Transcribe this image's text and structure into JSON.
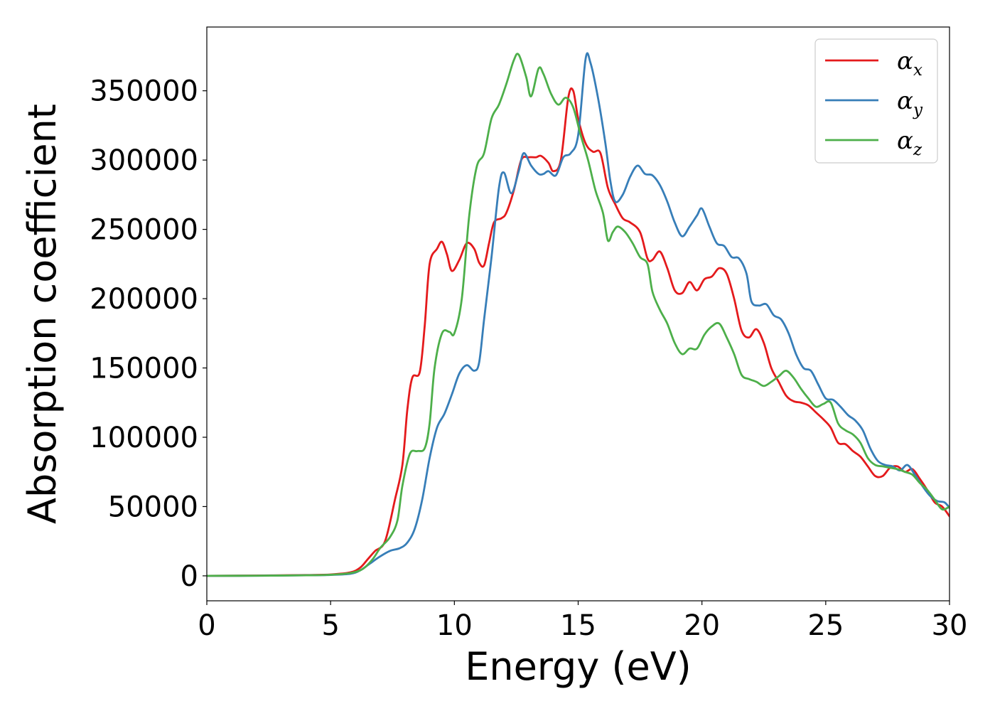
{
  "chart_data": {
    "type": "line",
    "title": "",
    "xlabel": "Energy (eV)",
    "ylabel": "Absorption coefficient",
    "xlim": [
      0,
      30
    ],
    "ylim": [
      -18000,
      396000
    ],
    "xticks": [
      0,
      5,
      10,
      15,
      20,
      25,
      30
    ],
    "xtick_labels": [
      "0",
      "5",
      "10",
      "15",
      "20",
      "25",
      "30"
    ],
    "yticks": [
      0,
      50000,
      100000,
      150000,
      200000,
      250000,
      300000,
      350000
    ],
    "ytick_labels": [
      "0",
      "50000",
      "100000",
      "150000",
      "200000",
      "250000",
      "300000",
      "350000"
    ],
    "grid": false,
    "legend_position": "top-right",
    "series": [
      {
        "name": "αx",
        "symbol": "α",
        "subscript": "x",
        "color": "#e41a1c",
        "points": [
          [
            0,
            0
          ],
          [
            2,
            200
          ],
          [
            4,
            600
          ],
          [
            5,
            1000
          ],
          [
            5.8,
            2500
          ],
          [
            6.2,
            6000
          ],
          [
            6.5,
            12000
          ],
          [
            6.8,
            18000
          ],
          [
            7.2,
            25000
          ],
          [
            7.6,
            55000
          ],
          [
            7.9,
            80000
          ],
          [
            8.1,
            120000
          ],
          [
            8.3,
            143000
          ],
          [
            8.6,
            147000
          ],
          [
            8.8,
            180000
          ],
          [
            9.0,
            225000
          ],
          [
            9.3,
            236000
          ],
          [
            9.5,
            241000
          ],
          [
            9.7,
            232000
          ],
          [
            9.9,
            220000
          ],
          [
            10.2,
            228000
          ],
          [
            10.5,
            240000
          ],
          [
            10.8,
            236000
          ],
          [
            11.0,
            226000
          ],
          [
            11.2,
            224000
          ],
          [
            11.4,
            240000
          ],
          [
            11.6,
            255000
          ],
          [
            11.9,
            258000
          ],
          [
            12.1,
            262000
          ],
          [
            12.4,
            278000
          ],
          [
            12.7,
            300000
          ],
          [
            13.0,
            302000
          ],
          [
            13.3,
            302000
          ],
          [
            13.5,
            303000
          ],
          [
            13.8,
            298000
          ],
          [
            14.0,
            292000
          ],
          [
            14.3,
            300000
          ],
          [
            14.6,
            345000
          ],
          [
            14.8,
            350000
          ],
          [
            15.0,
            330000
          ],
          [
            15.3,
            312000
          ],
          [
            15.6,
            306000
          ],
          [
            15.9,
            305000
          ],
          [
            16.2,
            280000
          ],
          [
            16.5,
            268000
          ],
          [
            16.8,
            258000
          ],
          [
            17.1,
            255000
          ],
          [
            17.5,
            248000
          ],
          [
            17.8,
            229000
          ],
          [
            18.0,
            228000
          ],
          [
            18.3,
            234000
          ],
          [
            18.6,
            222000
          ],
          [
            18.9,
            206000
          ],
          [
            19.2,
            204000
          ],
          [
            19.5,
            212000
          ],
          [
            19.8,
            206000
          ],
          [
            20.1,
            214000
          ],
          [
            20.4,
            216000
          ],
          [
            20.7,
            222000
          ],
          [
            21.0,
            218000
          ],
          [
            21.3,
            200000
          ],
          [
            21.6,
            177000
          ],
          [
            21.9,
            172000
          ],
          [
            22.2,
            178000
          ],
          [
            22.5,
            168000
          ],
          [
            22.8,
            150000
          ],
          [
            23.1,
            140000
          ],
          [
            23.4,
            130000
          ],
          [
            23.7,
            126000
          ],
          [
            24.0,
            125000
          ],
          [
            24.3,
            123000
          ],
          [
            24.6,
            118000
          ],
          [
            24.9,
            113000
          ],
          [
            25.2,
            107000
          ],
          [
            25.5,
            96000
          ],
          [
            25.8,
            95000
          ],
          [
            26.1,
            90000
          ],
          [
            26.4,
            86000
          ],
          [
            26.7,
            79000
          ],
          [
            27.0,
            72000
          ],
          [
            27.3,
            72000
          ],
          [
            27.6,
            78000
          ],
          [
            27.9,
            79000
          ],
          [
            28.2,
            75000
          ],
          [
            28.5,
            77000
          ],
          [
            28.8,
            70000
          ],
          [
            29.1,
            62000
          ],
          [
            29.4,
            53000
          ],
          [
            29.7,
            50000
          ],
          [
            30.0,
            43000
          ]
        ]
      },
      {
        "name": "αy",
        "symbol": "α",
        "subscript": "y",
        "color": "#377eb8",
        "points": [
          [
            0,
            0
          ],
          [
            2,
            100
          ],
          [
            4,
            400
          ],
          [
            5,
            700
          ],
          [
            5.8,
            1500
          ],
          [
            6.2,
            4000
          ],
          [
            6.6,
            9000
          ],
          [
            7.0,
            14000
          ],
          [
            7.4,
            18000
          ],
          [
            7.8,
            20000
          ],
          [
            8.1,
            24000
          ],
          [
            8.4,
            34000
          ],
          [
            8.7,
            55000
          ],
          [
            9.0,
            85000
          ],
          [
            9.3,
            107000
          ],
          [
            9.6,
            117000
          ],
          [
            9.9,
            131000
          ],
          [
            10.2,
            146000
          ],
          [
            10.5,
            152000
          ],
          [
            10.8,
            148000
          ],
          [
            11.0,
            154000
          ],
          [
            11.2,
            185000
          ],
          [
            11.5,
            230000
          ],
          [
            11.8,
            280000
          ],
          [
            12.0,
            291000
          ],
          [
            12.3,
            276000
          ],
          [
            12.6,
            292000
          ],
          [
            12.8,
            305000
          ],
          [
            13.1,
            296000
          ],
          [
            13.4,
            290000
          ],
          [
            13.6,
            290000
          ],
          [
            13.8,
            292000
          ],
          [
            14.1,
            289000
          ],
          [
            14.4,
            302000
          ],
          [
            14.7,
            305000
          ],
          [
            15.0,
            318000
          ],
          [
            15.3,
            373000
          ],
          [
            15.5,
            370000
          ],
          [
            15.8,
            345000
          ],
          [
            16.1,
            312000
          ],
          [
            16.3,
            285000
          ],
          [
            16.5,
            270000
          ],
          [
            16.8,
            275000
          ],
          [
            17.1,
            288000
          ],
          [
            17.4,
            296000
          ],
          [
            17.7,
            290000
          ],
          [
            18.0,
            289000
          ],
          [
            18.3,
            282000
          ],
          [
            18.6,
            270000
          ],
          [
            18.9,
            255000
          ],
          [
            19.2,
            245000
          ],
          [
            19.5,
            252000
          ],
          [
            19.8,
            260000
          ],
          [
            20.0,
            265000
          ],
          [
            20.3,
            252000
          ],
          [
            20.6,
            240000
          ],
          [
            20.9,
            238000
          ],
          [
            21.2,
            230000
          ],
          [
            21.5,
            229000
          ],
          [
            21.8,
            218000
          ],
          [
            22.0,
            198000
          ],
          [
            22.3,
            195000
          ],
          [
            22.6,
            196000
          ],
          [
            22.9,
            188000
          ],
          [
            23.2,
            185000
          ],
          [
            23.5,
            175000
          ],
          [
            23.8,
            160000
          ],
          [
            24.1,
            150000
          ],
          [
            24.4,
            148000
          ],
          [
            24.7,
            138000
          ],
          [
            25.0,
            128000
          ],
          [
            25.3,
            127000
          ],
          [
            25.6,
            122000
          ],
          [
            25.9,
            116000
          ],
          [
            26.2,
            112000
          ],
          [
            26.5,
            105000
          ],
          [
            26.8,
            92000
          ],
          [
            27.1,
            83000
          ],
          [
            27.4,
            80000
          ],
          [
            27.7,
            79000
          ],
          [
            28.0,
            76000
          ],
          [
            28.3,
            80000
          ],
          [
            28.6,
            73000
          ],
          [
            28.9,
            65000
          ],
          [
            29.2,
            58000
          ],
          [
            29.5,
            54000
          ],
          [
            29.8,
            53000
          ],
          [
            30.0,
            49000
          ]
        ]
      },
      {
        "name": "αz",
        "symbol": "α",
        "subscript": "z",
        "color": "#4daf4a",
        "points": [
          [
            0,
            0
          ],
          [
            2,
            100
          ],
          [
            4,
            400
          ],
          [
            5,
            800
          ],
          [
            5.8,
            2000
          ],
          [
            6.3,
            5000
          ],
          [
            6.7,
            12000
          ],
          [
            7.0,
            20000
          ],
          [
            7.4,
            28000
          ],
          [
            7.7,
            40000
          ],
          [
            7.9,
            65000
          ],
          [
            8.2,
            88000
          ],
          [
            8.5,
            90000
          ],
          [
            8.8,
            92000
          ],
          [
            9.0,
            110000
          ],
          [
            9.2,
            150000
          ],
          [
            9.5,
            175000
          ],
          [
            9.8,
            176000
          ],
          [
            10.0,
            175000
          ],
          [
            10.3,
            200000
          ],
          [
            10.6,
            260000
          ],
          [
            10.9,
            295000
          ],
          [
            11.2,
            305000
          ],
          [
            11.5,
            330000
          ],
          [
            11.8,
            340000
          ],
          [
            12.1,
            355000
          ],
          [
            12.4,
            372000
          ],
          [
            12.6,
            376000
          ],
          [
            12.9,
            360000
          ],
          [
            13.1,
            346000
          ],
          [
            13.4,
            366000
          ],
          [
            13.6,
            362000
          ],
          [
            13.9,
            348000
          ],
          [
            14.2,
            340000
          ],
          [
            14.5,
            345000
          ],
          [
            14.8,
            338000
          ],
          [
            15.1,
            318000
          ],
          [
            15.4,
            300000
          ],
          [
            15.7,
            278000
          ],
          [
            16.0,
            262000
          ],
          [
            16.2,
            242000
          ],
          [
            16.4,
            248000
          ],
          [
            16.6,
            252000
          ],
          [
            16.9,
            248000
          ],
          [
            17.2,
            240000
          ],
          [
            17.5,
            230000
          ],
          [
            17.8,
            225000
          ],
          [
            18.0,
            205000
          ],
          [
            18.3,
            192000
          ],
          [
            18.6,
            182000
          ],
          [
            18.9,
            168000
          ],
          [
            19.2,
            160000
          ],
          [
            19.5,
            164000
          ],
          [
            19.8,
            164000
          ],
          [
            20.1,
            174000
          ],
          [
            20.4,
            180000
          ],
          [
            20.7,
            182000
          ],
          [
            21.0,
            172000
          ],
          [
            21.3,
            160000
          ],
          [
            21.6,
            145000
          ],
          [
            21.9,
            142000
          ],
          [
            22.2,
            140000
          ],
          [
            22.5,
            137000
          ],
          [
            22.8,
            140000
          ],
          [
            23.1,
            144000
          ],
          [
            23.4,
            148000
          ],
          [
            23.7,
            143000
          ],
          [
            24.0,
            135000
          ],
          [
            24.3,
            128000
          ],
          [
            24.6,
            122000
          ],
          [
            24.9,
            124000
          ],
          [
            25.2,
            125000
          ],
          [
            25.5,
            110000
          ],
          [
            25.8,
            105000
          ],
          [
            26.1,
            102000
          ],
          [
            26.4,
            96000
          ],
          [
            26.7,
            85000
          ],
          [
            27.0,
            80000
          ],
          [
            27.3,
            79000
          ],
          [
            27.6,
            78000
          ],
          [
            27.9,
            77000
          ],
          [
            28.2,
            75000
          ],
          [
            28.5,
            73000
          ],
          [
            28.8,
            67000
          ],
          [
            29.1,
            62000
          ],
          [
            29.4,
            55000
          ],
          [
            29.7,
            48000
          ],
          [
            30.0,
            50000
          ]
        ]
      }
    ]
  }
}
